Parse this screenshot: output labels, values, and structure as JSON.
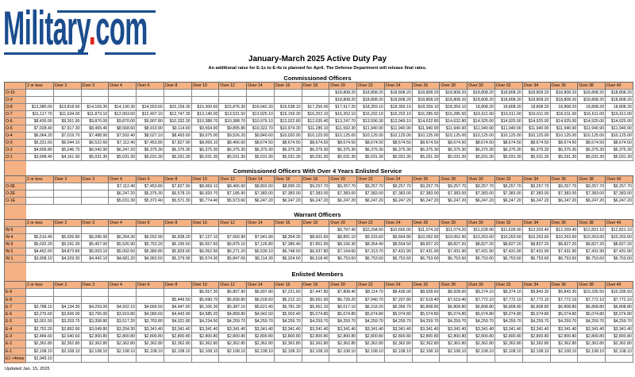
{
  "logo": {
    "text_main": "Military",
    "text_dot": ".",
    "text_end": "com",
    "brand_color": "#1b4d8e",
    "dot_color": "#e2231a"
  },
  "title": "January-March 2025 Active Duty Pay",
  "subtitle": "An additional raise for E-1s to E-4s is planned for April. The Defense Department will release final rates.",
  "header_color": "#f4b183",
  "columns": [
    "2 or less",
    "Over 2",
    "Over 3",
    "Over 4",
    "Over 6",
    "Over 8",
    "Over 10",
    "Over 12",
    "Over 14",
    "Over 16",
    "Over 18",
    "Over 20",
    "Over 22",
    "Over 24",
    "Over 26",
    "Over 28",
    "Over 30",
    "Over 32",
    "Over 34",
    "Over 36",
    "Over 38",
    "Over 40"
  ],
  "sections": [
    {
      "title": "Commissioned Officers",
      "rows": [
        {
          "grade": "O-10",
          "pay": [
            "",
            "",
            "",
            "",
            "",
            "",
            "",
            "",
            "",
            "",
            "",
            "$18,808.20",
            "$18,808.20",
            "$18,808.20",
            "$18,808.20",
            "$18,808.20",
            "$18,808.20",
            "$18,808.20",
            "$18,808.20",
            "$18,808.20",
            "$18,808.20",
            "$18,808.20"
          ]
        },
        {
          "grade": "O-9",
          "pay": [
            "",
            "",
            "",
            "",
            "",
            "",
            "",
            "",
            "",
            "",
            "",
            "$18,808.20",
            "$18,808.20",
            "$18,808.20",
            "$18,808.20",
            "$18,808.20",
            "$18,808.20",
            "$18,808.20",
            "$18,808.20",
            "$18,808.20",
            "$18,808.20",
            "$18,808.20"
          ]
        },
        {
          "grade": "O-8",
          "pay": [
            "$13,380.00",
            "$13,818.90",
            "$14,109.30",
            "$14,190.30",
            "$14,553.60",
            "$15,159.30",
            "$15,300.60",
            "$15,876.30",
            "$16,042.20",
            "$16,538.10",
            "$17,256.00",
            "$17,917.20",
            "$18,359.10",
            "$18,359.10",
            "$18,359.10",
            "$18,359.10",
            "18,808.20",
            "18,808.20",
            "18,808.20",
            "18,808.20",
            "18,808.20",
            "18,808.20"
          ]
        },
        {
          "grade": "O-7",
          "pay": [
            "$11,117.70",
            "$11,634.00",
            "$11,873.10",
            "$12,063.60",
            "$12,407.10",
            "$12,747.30",
            "$13,140.00",
            "$13,531.50",
            "$13,925.10",
            "$15,159.30",
            "$16,202.10",
            "$16,202.10",
            "$16,202.10",
            "$16,202.10",
            "$16,285.50",
            "$16,285.50",
            "$16,611.00",
            "$16,611.00",
            "$16,611.00",
            "$16,611.00",
            "$16,611.00",
            "$16,611.00"
          ]
        },
        {
          "grade": "O-6",
          "pay": [
            "$8,430.90",
            "$9,261.90",
            "$9,870.00",
            "$9,870.00",
            "$9,907.80",
            "$10,332.30",
            "$10,388.70",
            "$10,388.70",
            "$10,979.10",
            "$12,022.80",
            "$12,635.40",
            "$13,247.70",
            "$13,596.30",
            "$13,949.10",
            "$14,632.80",
            "$14,632.80",
            "$14,925.00",
            "$14,925.00",
            "$14,925.00",
            "$14,925.00",
            "$14,925.00",
            "$14,925.00"
          ]
        },
        {
          "grade": "O-5",
          "pay": [
            "$7,028.40",
            "$7,917.30",
            "$8,465.40",
            "$8,568.60",
            "$8,910.90",
            "$9,114.90",
            "$9,564.90",
            "$9,895.80",
            "$10,322.70",
            "$10,974.30",
            "$11,285.10",
            "$11,592.30",
            "$11,940.90",
            "$11,940.90",
            "$11,940.90",
            "$11,940.90",
            "$11,940.90",
            "$11,940.90",
            "$11,940.90",
            "$11,940.90",
            "$11,940.90",
            "$11,940.90"
          ]
        },
        {
          "grade": "O-4",
          "pay": [
            "$6,064.20",
            "$7,019.70",
            "$7,488.90",
            "$7,592.40",
            "$8,027.10",
            "$8,493.60",
            "$9,075.00",
            "$9,526.20",
            "$9,840.60",
            "$10,020.90",
            "$10,125.00",
            "$10,125.00",
            "$10,125.00",
            "$10,125.00",
            "$10,125.00",
            "$10,125.00",
            "$10,125.00",
            "$10,125.00",
            "$10,125.00",
            "$10,125.00",
            "$10,125.00",
            "$10,125.00"
          ]
        },
        {
          "grade": "O-3",
          "pay": [
            "$5,331.60",
            "$6,044.10",
            "$6,522.60",
            "$7,112.40",
            "$7,453.80",
            "$7,827.90",
            "$8,069.10",
            "$8,466.60",
            "$8,674.50",
            "$8,674.50",
            "$8,674.50",
            "$8,674.50",
            "$8,674.50",
            "$8,674.50",
            "$8,674.50",
            "$8,674.50",
            "$8,674.50",
            "$8,674.50",
            "$8,674.50",
            "$8,674.50",
            "$8,674.50",
            "$8,674.50"
          ]
        },
        {
          "grade": "O-2",
          "pay": [
            "$4,606.80",
            "$5,246.70",
            "$6,042.90",
            "$6,247.20",
            "$6,375.30",
            "$6,375.30",
            "$6,375.30",
            "$6,375.30",
            "$6,375.30",
            "$6,375.30",
            "$6,375.30",
            "$6,375.30",
            "$6,375.30",
            "$6,375.30",
            "$6,375.30",
            "$6,375.30",
            "$6,375.30",
            "$6,375.30",
            "$6,375.30",
            "$6,375.30",
            "$6,375.30",
            "$6,375.30"
          ]
        },
        {
          "grade": "O-1",
          "pay": [
            "$3,998.40",
            "$4,161.90",
            "$5,031.30",
            "$5,031.30",
            "$5,031.30",
            "$5,031.30",
            "$5,031.30",
            "$5,031.30",
            "$5,031.30",
            "$5,031.30",
            "$5,031.30",
            "$5,031.30",
            "$5,031.30",
            "$5,031.30",
            "$5,031.30",
            "$5,031.30",
            "$5,031.30",
            "$5,031.30",
            "$5,031.30",
            "$5,031.30",
            "$5,031.30",
            "$5,031.30"
          ]
        }
      ]
    },
    {
      "title": "Commissioned Officers With Over 4 Years Enlisted Service",
      "rows": [
        {
          "grade": "O-3E",
          "pay": [
            "",
            "",
            "",
            "$7,112.40",
            "$7,453.80",
            "$7,827.90",
            "$8,069.10",
            "$8,466.60",
            "$8,802.60",
            "$8,995.20",
            "$9,257.70",
            "$9,257.70",
            "$9,257.70",
            "$9,257.70",
            "$9,257.70",
            "$9,257.70",
            "$9,257.70",
            "$9,257.70",
            "$9,257.70",
            "$9,257.70",
            "$9,257.70",
            "$9,257.70"
          ]
        },
        {
          "grade": "O-2E",
          "pay": [
            "",
            "",
            "",
            "$6,247.20",
            "$6,375.30",
            "$6,578.10",
            "$6,920.70",
            "$7,185.90",
            "$7,383.00",
            "$7,383.00",
            "$7,383.00",
            "$7,383.00",
            "$7,383.00",
            "$7,383.00",
            "$7,383.00",
            "$7,383.00",
            "$7,383.00",
            "$7,383.00",
            "$7,383.00",
            "$7,383.00",
            "$7,383.00",
            "$7,383.00"
          ]
        },
        {
          "grade": "O-1E",
          "pay": [
            "",
            "",
            "",
            "$5,031.30",
            "$5,372.40",
            "$5,571.30",
            "$5,774.40",
            "$5,973.60",
            "$6,247.20",
            "$6,247.20",
            "$6,247.20",
            "$6,247.20",
            "$6,247.20",
            "$6,247.20",
            "$6,247.20",
            "$6,247.20",
            "$6,247.20",
            "$6,247.20",
            "$6,247.20",
            "$6,247.20",
            "$6,247.20",
            "$6,247.20"
          ]
        }
      ]
    },
    {
      "title": "Warrant Officers",
      "rows": [
        {
          "grade": "W-5",
          "pay": [
            "",
            "",
            "",
            "",
            "",
            "",
            "",
            "",
            "",
            "",
            "",
            "$9,797.40",
            "$10,294.50",
            "$10,665.00",
            "$11,074.20",
            "$11,074.20",
            "$11,628.90",
            "$11,628.90",
            "$12,209.40",
            "$12,209.40",
            "$12,821.10",
            "$12,821.10"
          ]
        },
        {
          "grade": "W-4",
          "pay": [
            "$5,510.40",
            "$5,926.80",
            "$6,096.90",
            "$6,264.30",
            "$6,552.90",
            "$6,838.20",
            "$7,127.10",
            "$7,560.90",
            "$7,941.90",
            "$8,304.30",
            "$8,601.60",
            "$8,891.10",
            "$9,315.60",
            "$9,664.80",
            "$10,062.90",
            "$10,062.90",
            "$10,263.60",
            "$10,263.60",
            "$10,263.60",
            "$10,263.60",
            "$10,263.60",
            "$10,263.60"
          ]
        },
        {
          "grade": "W-3",
          "pay": [
            "$5,032.20",
            "$5,241.30",
            "$5,457.00",
            "$5,526.90",
            "$5,752.20",
            "$6,195.60",
            "$6,657.60",
            "$6,875.10",
            "$7,126.80",
            "$7,385.40",
            "$7,851.90",
            "$8,166.30",
            "$8,354.40",
            "$8,554.50",
            "$8,827.20",
            "$8,827.20",
            "$8,827.20",
            "$8,827.20",
            "$8,827.20",
            "$8,827.20",
            "$8,827.20",
            "$8,827.20"
          ]
        },
        {
          "grade": "W-2",
          "pay": [
            "$4,452.60",
            "$4,873.80",
            "$5,003.10",
            "$5,092.50",
            "$5,380.80",
            "$5,829.60",
            "$6,052.50",
            "$6,271.20",
            "$6,539.10",
            "$6,748.50",
            "$6,937.80",
            "$7,164.60",
            "$7,313.70",
            "$7,431.90",
            "$7,431.90",
            "$7,431.90",
            "$7,431.90",
            "$7,431.90",
            "$7,431.90",
            "$7,431.90",
            "$7,431.90",
            "$7,431.90"
          ]
        },
        {
          "grade": "W-1",
          "pay": [
            "$3,908.10",
            "$4,329.30",
            "$4,442.10",
            "$4,681.20",
            "$4,963.50",
            "$5,379.90",
            "$5,574.30",
            "$5,847.00",
            "$6,114.30",
            "$6,324.60",
            "$6,518.40",
            "$6,753.60",
            "$6,753.60",
            "$6,753.60",
            "$6,753.60",
            "$6,753.60",
            "$6,753.60",
            "$6,753.60",
            "$6,753.60",
            "$6,753.60",
            "$6,753.60",
            "$6,753.60"
          ]
        }
      ]
    },
    {
      "title": "Enlisted Members",
      "rows": [
        {
          "grade": "E-9",
          "pay": [
            "",
            "",
            "",
            "",
            "",
            "",
            "$6,657.30",
            "$6,807.90",
            "$6,997.80",
            "$7,221.60",
            "$7,447.80",
            "$7,808.40",
            "$8,114.70",
            "$8,436.00",
            "$8,928.60",
            "$8,928.60",
            "$9,374.10",
            "$9,374.10",
            "$9,843.30",
            "$9,843.30",
            "$10,336.50",
            "$10,336.50"
          ]
        },
        {
          "grade": "E-8",
          "pay": [
            "",
            "",
            "",
            "",
            "",
            "$5,449.50",
            "$5,690.70",
            "$5,839.80",
            "$6,018.60",
            "$6,212.10",
            "$6,561.90",
            "$6,739.20",
            "$7,040.70",
            "$7,207.80",
            "$7,619.40",
            "$7,619.40",
            "$7,772.10",
            "$7,772.10",
            "$7,772.10",
            "$7,772.10",
            "$7,772.10",
            "$7,772.10"
          ]
        },
        {
          "grade": "E-7",
          "pay": [
            "$3,788.10",
            "$4,134.30",
            "$4,293.00",
            "$4,502.10",
            "$4,666.50",
            "$4,947.60",
            "$5,106.30",
            "$5,387.10",
            "$5,621.40",
            "$5,781.30",
            "$5,951.10",
            "$6,017.10",
            "$6,218.20",
            "$6,356.70",
            "$6,808.80",
            "$6,808.80",
            "$6,808.80",
            "$6,808.80",
            "$6,808.80",
            "$6,808.80",
            "$6,808.80",
            "$6,808.80"
          ]
        },
        {
          "grade": "E-6",
          "pay": [
            "$3,276.60",
            "$3,606.00",
            "$3,765.00",
            "$3,919.80",
            "$4,080.60",
            "$4,443.90",
            "$4,585.20",
            "$4,858.80",
            "$4,942.50",
            "$5,003.40",
            "$5,074.80",
            "$5,074.80",
            "$5,074.80",
            "$5,074.80",
            "$5,074.80",
            "$5,074.80",
            "$5,074.80",
            "$5,074.80",
            "$5,074.80",
            "$5,074.80",
            "$5,074.80",
            "$5,074.80"
          ]
        },
        {
          "grade": "E-5",
          "pay": [
            "$3,001.50",
            "$3,203.70",
            "$3,358.80",
            "$3,517.20",
            "$3,763.80",
            "$4,021.80",
            "$4,234.50",
            "$4,259.70",
            "$4,259.70",
            "$4,259.70",
            "$4,259.70",
            "$4,259.70",
            "$4,259.70",
            "$4,259.70",
            "$4,259.70",
            "$4,259.70",
            "$4,259.70",
            "$4,259.70",
            "$4,259.70",
            "$4,259.70",
            "$4,259.70",
            "$4,259.70"
          ]
        },
        {
          "grade": "E-4",
          "pay": [
            "$2,752.20",
            "$2,892.90",
            "$3,049.80",
            "$3,204.30",
            "$3,341.40",
            "$3,341.40",
            "$3,341.40",
            "$3,341.40",
            "$3,341.40",
            "$3,341.40",
            "$3,341.40",
            "$3,341.40",
            "$3,341.40",
            "$3,341.40",
            "$3,341.40",
            "$3,341.40",
            "$3,341.40",
            "$3,341.40",
            "$3,341.40",
            "$3,341.40",
            "$3,341.40",
            "$3,341.40"
          ]
        },
        {
          "grade": "E-3",
          "pay": [
            "$2,484.60",
            "$2,640.60",
            "$2,800.80",
            "$2,800.80",
            "$2,800.80",
            "$2,800.80",
            "$2,800.80",
            "$2,800.80",
            "$2,800.80",
            "$2,800.80",
            "$2,800.80",
            "$2,800.80",
            "$2,800.80",
            "$2,800.80",
            "$2,800.80",
            "$2,800.80",
            "$2,800.80",
            "$2,800.80",
            "$2,800.80",
            "$2,800.80",
            "$2,800.80",
            "$2,800.80"
          ]
        },
        {
          "grade": "E-2",
          "pay": [
            "$2,362.80",
            "$2,362.80",
            "$2,362.80",
            "$2,362.80",
            "$2,362.80",
            "$2,362.80",
            "$2,362.80",
            "$2,362.80",
            "$2,362.80",
            "$2,362.80",
            "$2,362.80",
            "$2,362.80",
            "$2,362.80",
            "$2,362.80",
            "$2,362.80",
            "$2,362.80",
            "$2,362.80",
            "$2,362.80",
            "$2,362.80",
            "$2,362.80",
            "$2,362.80",
            "$2,362.80"
          ]
        },
        {
          "grade": "E-1",
          "pay": [
            "$2,108.10",
            "$2,108.10",
            "$2,108.10",
            "$2,108.10",
            "$2,108.10",
            "$2,108.10",
            "$2,108.10",
            "$2,108.10",
            "$2,108.10",
            "$2,108.10",
            "$2,108.10",
            "$2,108.10",
            "$2,108.10",
            "$2,108.10",
            "$2,108.10",
            "$2,108.10",
            "$2,108.10",
            "$2,108.10",
            "$2,108.10",
            "$2,108.10",
            "$2,108.10",
            "$2,108.10"
          ]
        },
        {
          "grade": "E1 <4mos",
          "pay": [
            "$1,949.10",
            "",
            "",
            "",
            "",
            "",
            "",
            "",
            "",
            "",
            "",
            "",
            "",
            "",
            "",
            "",
            "",
            "",
            "",
            "",
            "",
            ""
          ]
        }
      ]
    }
  ],
  "footer": "Updated Jan. 15, 2025"
}
